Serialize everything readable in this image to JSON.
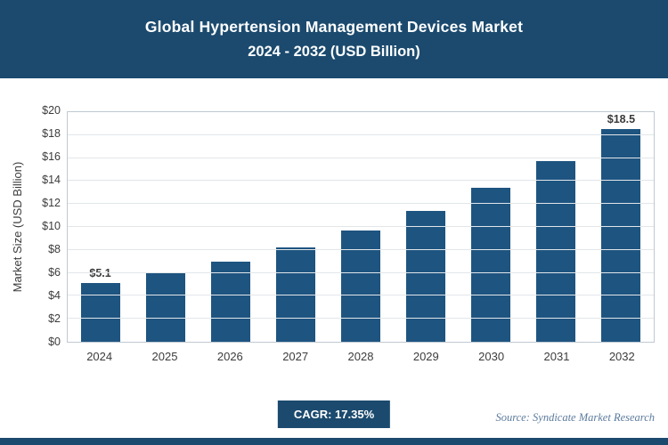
{
  "header": {
    "title_line1": "Global Hypertension Management Devices Market",
    "title_line2": "2024 - 2032 (USD Billion)"
  },
  "chart_data": {
    "type": "bar",
    "title": "Global Hypertension Management Devices Market 2024 - 2032 (USD Billion)",
    "categories": [
      "2024",
      "2025",
      "2026",
      "2027",
      "2028",
      "2029",
      "2030",
      "2031",
      "2032"
    ],
    "values": [
      5.1,
      6.0,
      7.0,
      8.2,
      9.7,
      11.4,
      13.4,
      15.7,
      18.5
    ],
    "bar_labels": [
      "$5.1",
      "",
      "",
      "",
      "",
      "",
      "",
      "",
      "$18.5"
    ],
    "xlabel": "",
    "ylabel": "Market Size (USD Billion)",
    "ylim": [
      0,
      20
    ],
    "ytick_step": 2,
    "ytick_prefix": "$",
    "grid": true,
    "legend": "none",
    "bar_color": "#1e5480"
  },
  "footer": {
    "cagr_label": "CAGR: 17.35%",
    "source": "Source: Syndicate Market Research"
  },
  "colors": {
    "header_bg": "#1b4a6e",
    "accent": "#1e5480",
    "gridline": "#e2e6ea"
  }
}
